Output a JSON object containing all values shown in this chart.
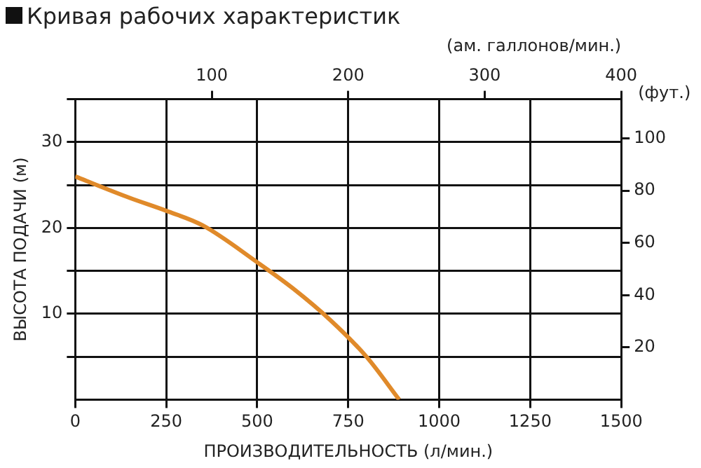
{
  "chart_data": {
    "type": "line",
    "title": "Кривая рабочих характеристик",
    "xlabel": "ПРОИЗВОДИТЕЛЬНОСТЬ (л/мин.)",
    "ylabel": "ВЫСОТА ПОДАЧИ (м)",
    "x2label": "(ам. галлонов/мин.)",
    "y2label": "(фут.)",
    "x": [
      0,
      150,
      250,
      350,
      500,
      600,
      700,
      800,
      890
    ],
    "series": [
      {
        "color": "#e08a2a",
        "values": [
          26,
          23.5,
          22,
          20.3,
          16,
          12.9,
          9.3,
          5,
          0
        ]
      }
    ],
    "xlim": [
      0,
      1500
    ],
    "xticks": [
      0,
      250,
      500,
      750,
      1000,
      1250,
      1500
    ],
    "x2lim": [
      0,
      400
    ],
    "x2ticks": [
      100,
      200,
      300,
      400
    ],
    "ylim": [
      0,
      35
    ],
    "yticks": [
      {
        "value": 5,
        "label": null
      },
      10,
      {
        "value": 15,
        "label": null
      },
      20,
      {
        "value": 25,
        "label": null
      },
      30,
      {
        "value": 35,
        "label": null
      }
    ],
    "y2lim": [
      0,
      115
    ],
    "y2ticks": [
      20,
      40,
      60,
      80,
      100
    ],
    "grid": true,
    "legend": false,
    "marker": "none",
    "line_style": "solid"
  }
}
